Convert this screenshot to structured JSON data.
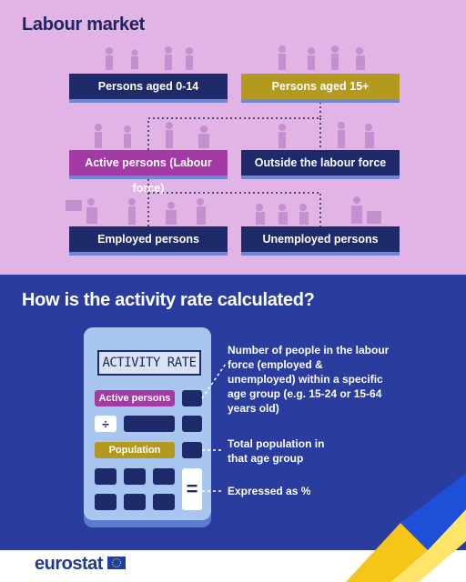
{
  "top": {
    "title": "Labour market",
    "nodes": [
      "Persons aged 0-14",
      "Persons aged 15+",
      "Active persons (Labour force)",
      "Outside the labour force",
      "Employed persons",
      "Unemployed persons"
    ]
  },
  "bottom": {
    "title": "How is the activity rate calculated?",
    "calculator": {
      "display": "ACTIVITY RATE",
      "numerator": "Active persons",
      "divide": "÷",
      "denominator": "Population",
      "equals": "="
    },
    "notes": [
      "Number of people in the labour force (employed & unemployed) within a specific age group (e.g. 15-24 or 15-64 years old)",
      "Total population in that age group",
      "Expressed as %"
    ]
  },
  "footer": {
    "logo": "eurostat"
  }
}
